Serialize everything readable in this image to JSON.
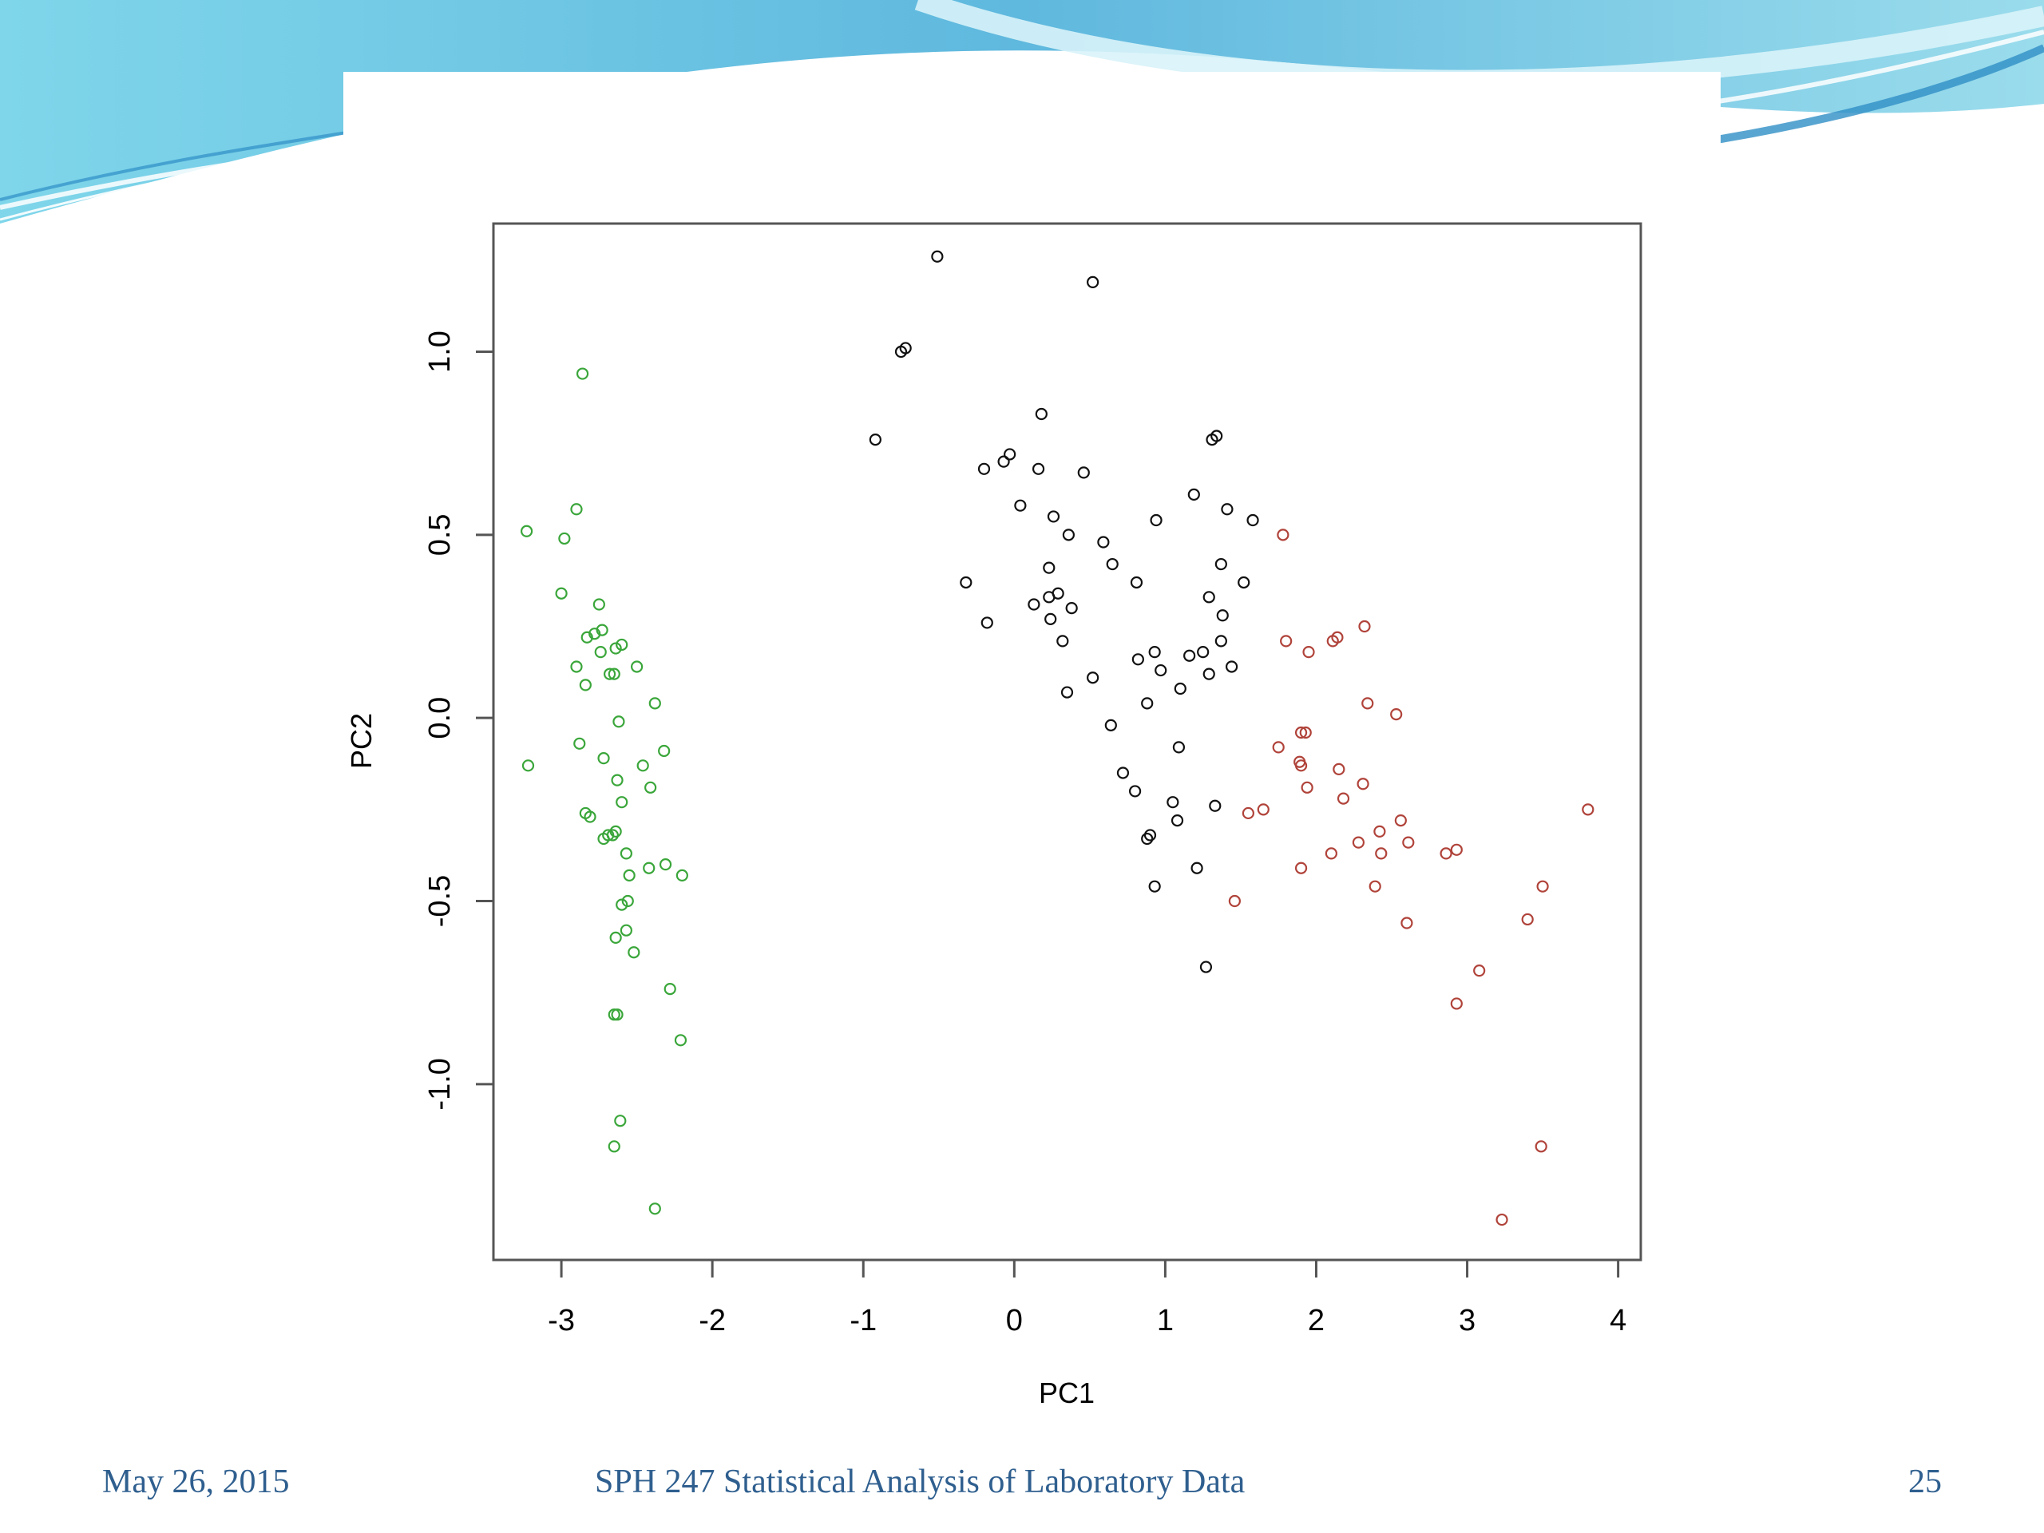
{
  "footer": {
    "date": "May 26, 2015",
    "course": "SPH 247 Statistical Analysis of Laboratory Data",
    "page": "25"
  },
  "colors": {
    "setosa_group": "#3aa63a",
    "versicolor_group": "#111111",
    "virginica_group": "#b0433a",
    "header_wave": "#5fc0e0"
  },
  "chart_data": {
    "type": "scatter",
    "xlabel": "PC1",
    "ylabel": "PC2",
    "xlim": [
      -3.45,
      4.15
    ],
    "ylim": [
      -1.48,
      1.35
    ],
    "xticks": [
      -3,
      -2,
      -1,
      0,
      1,
      2,
      3,
      4
    ],
    "yticks": [
      -1.0,
      -0.5,
      0.0,
      0.5,
      1.0
    ],
    "xtick_labels": [
      "-3",
      "-2",
      "-1",
      "0",
      "1",
      "2",
      "3",
      "4"
    ],
    "ytick_labels": [
      "-1.0",
      "-0.5",
      "0.0",
      "0.5",
      "1.0"
    ],
    "grid": false,
    "series": [
      {
        "color": "#3aa63a",
        "points": [
          [
            -2.86,
            0.94
          ],
          [
            -2.9,
            0.57
          ],
          [
            -3.23,
            0.51
          ],
          [
            -2.98,
            0.49
          ],
          [
            -3.0,
            0.34
          ],
          [
            -2.75,
            0.31
          ],
          [
            -2.73,
            0.24
          ],
          [
            -2.78,
            0.23
          ],
          [
            -2.83,
            0.22
          ],
          [
            -2.6,
            0.2
          ],
          [
            -2.64,
            0.19
          ],
          [
            -2.74,
            0.18
          ],
          [
            -2.5,
            0.14
          ],
          [
            -2.9,
            0.14
          ],
          [
            -2.65,
            0.12
          ],
          [
            -2.68,
            0.12
          ],
          [
            -2.84,
            0.09
          ],
          [
            -2.38,
            0.04
          ],
          [
            -2.62,
            -0.01
          ],
          [
            -2.88,
            -0.07
          ],
          [
            -2.32,
            -0.09
          ],
          [
            -2.72,
            -0.11
          ],
          [
            -3.22,
            -0.13
          ],
          [
            -2.46,
            -0.13
          ],
          [
            -2.63,
            -0.17
          ],
          [
            -2.41,
            -0.19
          ],
          [
            -2.6,
            -0.23
          ],
          [
            -2.84,
            -0.26
          ],
          [
            -2.81,
            -0.27
          ],
          [
            -2.64,
            -0.31
          ],
          [
            -2.69,
            -0.32
          ],
          [
            -2.66,
            -0.32
          ],
          [
            -2.72,
            -0.33
          ],
          [
            -2.57,
            -0.37
          ],
          [
            -2.42,
            -0.41
          ],
          [
            -2.31,
            -0.4
          ],
          [
            -2.55,
            -0.43
          ],
          [
            -2.2,
            -0.43
          ],
          [
            -2.6,
            -0.51
          ],
          [
            -2.56,
            -0.5
          ],
          [
            -2.57,
            -0.58
          ],
          [
            -2.64,
            -0.6
          ],
          [
            -2.52,
            -0.64
          ],
          [
            -2.28,
            -0.74
          ],
          [
            -2.65,
            -0.81
          ],
          [
            -2.63,
            -0.81
          ],
          [
            -2.21,
            -0.88
          ],
          [
            -2.61,
            -1.1
          ],
          [
            -2.65,
            -1.17
          ],
          [
            -2.38,
            -1.34
          ]
        ]
      },
      {
        "color": "#111111",
        "points": [
          [
            -0.51,
            1.26
          ],
          [
            0.52,
            1.19
          ],
          [
            -0.75,
            1.0
          ],
          [
            -0.72,
            1.01
          ],
          [
            0.18,
            0.83
          ],
          [
            -0.92,
            0.76
          ],
          [
            1.31,
            0.76
          ],
          [
            1.34,
            0.77
          ],
          [
            -0.03,
            0.72
          ],
          [
            -0.07,
            0.7
          ],
          [
            0.16,
            0.68
          ],
          [
            -0.2,
            0.68
          ],
          [
            0.46,
            0.67
          ],
          [
            1.19,
            0.61
          ],
          [
            0.04,
            0.58
          ],
          [
            1.41,
            0.57
          ],
          [
            0.94,
            0.54
          ],
          [
            1.58,
            0.54
          ],
          [
            0.26,
            0.55
          ],
          [
            0.36,
            0.5
          ],
          [
            0.59,
            0.48
          ],
          [
            0.65,
            0.42
          ],
          [
            1.37,
            0.42
          ],
          [
            0.23,
            0.41
          ],
          [
            0.81,
            0.37
          ],
          [
            1.52,
            0.37
          ],
          [
            -0.32,
            0.37
          ],
          [
            0.29,
            0.34
          ],
          [
            0.23,
            0.33
          ],
          [
            1.29,
            0.33
          ],
          [
            0.13,
            0.31
          ],
          [
            0.38,
            0.3
          ],
          [
            1.38,
            0.28
          ],
          [
            0.24,
            0.27
          ],
          [
            -0.18,
            0.26
          ],
          [
            0.32,
            0.21
          ],
          [
            1.37,
            0.21
          ],
          [
            0.93,
            0.18
          ],
          [
            1.25,
            0.18
          ],
          [
            0.82,
            0.16
          ],
          [
            1.16,
            0.17
          ],
          [
            1.44,
            0.14
          ],
          [
            0.97,
            0.13
          ],
          [
            1.29,
            0.12
          ],
          [
            0.52,
            0.11
          ],
          [
            1.1,
            0.08
          ],
          [
            0.35,
            0.07
          ],
          [
            0.88,
            0.04
          ],
          [
            0.64,
            -0.02
          ],
          [
            1.09,
            -0.08
          ],
          [
            0.72,
            -0.15
          ],
          [
            0.8,
            -0.2
          ],
          [
            1.05,
            -0.23
          ],
          [
            1.33,
            -0.24
          ],
          [
            1.08,
            -0.28
          ],
          [
            0.9,
            -0.32
          ],
          [
            0.88,
            -0.33
          ],
          [
            1.21,
            -0.41
          ],
          [
            0.93,
            -0.46
          ],
          [
            1.27,
            -0.68
          ]
        ]
      },
      {
        "color": "#b0433a",
        "points": [
          [
            1.78,
            0.5
          ],
          [
            1.8,
            0.21
          ],
          [
            1.95,
            0.18
          ],
          [
            2.14,
            0.22
          ],
          [
            2.11,
            0.21
          ],
          [
            2.32,
            0.25
          ],
          [
            2.34,
            0.04
          ],
          [
            2.53,
            0.01
          ],
          [
            1.9,
            -0.04
          ],
          [
            1.93,
            -0.04
          ],
          [
            1.75,
            -0.08
          ],
          [
            1.89,
            -0.12
          ],
          [
            1.9,
            -0.13
          ],
          [
            2.15,
            -0.14
          ],
          [
            2.31,
            -0.18
          ],
          [
            1.94,
            -0.19
          ],
          [
            2.18,
            -0.22
          ],
          [
            1.55,
            -0.26
          ],
          [
            1.65,
            -0.25
          ],
          [
            2.56,
            -0.28
          ],
          [
            2.42,
            -0.31
          ],
          [
            2.28,
            -0.34
          ],
          [
            2.61,
            -0.34
          ],
          [
            2.1,
            -0.37
          ],
          [
            2.43,
            -0.37
          ],
          [
            2.93,
            -0.36
          ],
          [
            2.86,
            -0.37
          ],
          [
            1.9,
            -0.41
          ],
          [
            3.8,
            -0.25
          ],
          [
            2.39,
            -0.46
          ],
          [
            3.5,
            -0.46
          ],
          [
            1.46,
            -0.5
          ],
          [
            3.4,
            -0.55
          ],
          [
            2.6,
            -0.56
          ],
          [
            3.08,
            -0.69
          ],
          [
            2.93,
            -0.78
          ],
          [
            3.49,
            -1.17
          ],
          [
            3.23,
            -1.37
          ]
        ]
      }
    ]
  }
}
